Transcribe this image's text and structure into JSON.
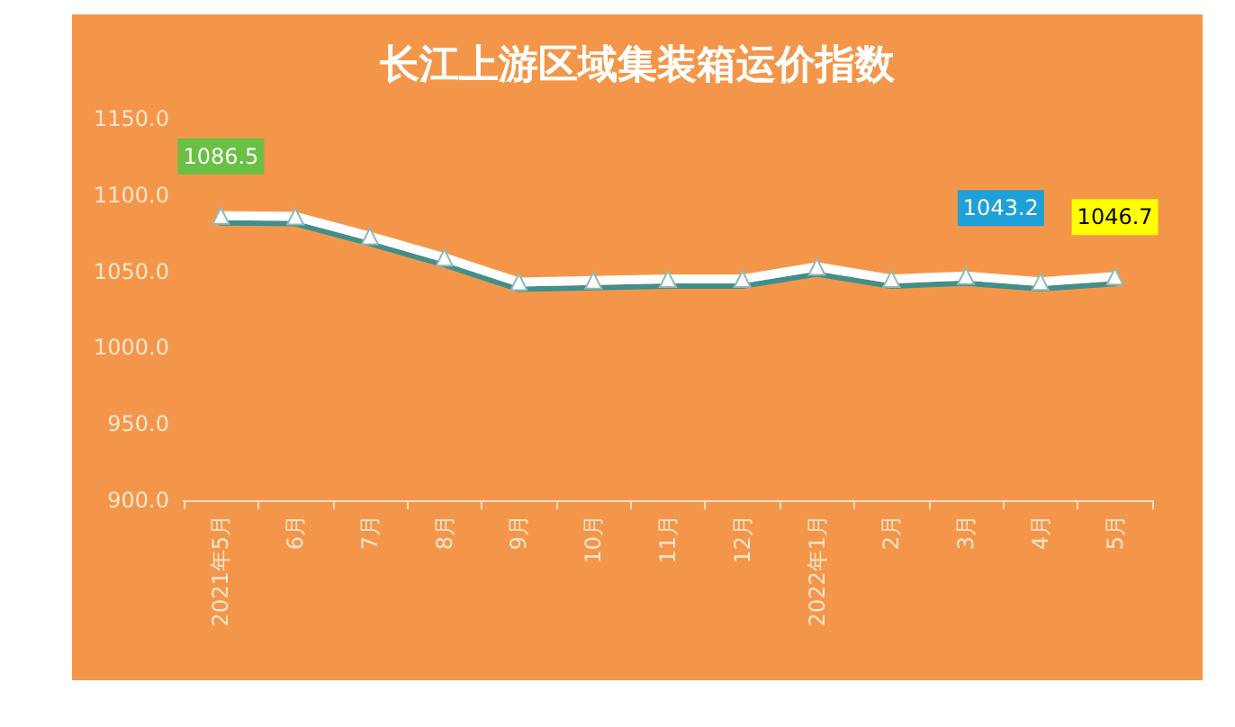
{
  "chart_data": {
    "type": "line",
    "title": "长江上游区域集装箱运价指数",
    "categories": [
      "2021年5月",
      "6月",
      "7月",
      "8月",
      "9月",
      "10月",
      "11月",
      "12月",
      "2022年1月",
      "2月",
      "3月",
      "4月",
      "5月"
    ],
    "series": [
      {
        "color": "#ffffff",
        "values": [
          1086.5,
          1086,
          1073,
          1059,
          1043,
          1044,
          1045,
          1045,
          1053,
          1045,
          1047,
          1043.2,
          1046.7
        ],
        "value_labels": [
          "1086.5",
          null,
          null,
          null,
          null,
          null,
          null,
          null,
          null,
          null,
          null,
          "1043.2",
          "1046.7"
        ]
      }
    ],
    "ylim": [
      900,
      1150
    ],
    "yticks": [
      {
        "value": 900,
        "label": "900.0"
      },
      {
        "value": 950,
        "label": "950.0"
      },
      {
        "value": 1000,
        "label": "1000.0"
      },
      {
        "value": 1050,
        "label": "1050.0"
      },
      {
        "value": 1100,
        "label": "1100.0"
      },
      {
        "value": 1150,
        "label": "1150.0"
      }
    ],
    "grid": false,
    "marker": "triangle",
    "line_style": "solid"
  }
}
